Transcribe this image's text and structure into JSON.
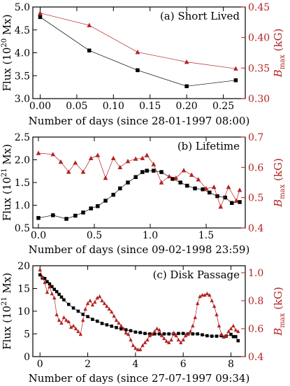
{
  "figure": {
    "colors": {
      "flux": "#000000",
      "bmax": "#b22222"
    }
  },
  "chart_data": [
    {
      "type": "line",
      "panel_label": "(a) Short Lived",
      "xlabel": "Number of days (since 28-01-1997 08:00)",
      "ylabel": "Flux (10",
      "ylabel_sup": "20",
      "ylabel_tail": " Mx)",
      "y2label": "B",
      "y2label_sub": "max",
      "y2label_tail": " (kG)",
      "xlim": [
        -0.01,
        0.28
      ],
      "ylim": [
        3.0,
        5.0
      ],
      "y2lim": [
        0.3,
        0.45
      ],
      "xticks": [
        0.0,
        0.05,
        0.1,
        0.15,
        0.2,
        0.25
      ],
      "xtick_labels": [
        "0.00",
        "0.05",
        "0.10",
        "0.15",
        "0.20",
        "0.25"
      ],
      "yticks": [
        3.0,
        3.5,
        4.0,
        4.5,
        5.0
      ],
      "ytick_labels": [
        "3.0",
        "3.5",
        "4.0",
        "4.5",
        "5.0"
      ],
      "y2ticks": [
        0.3,
        0.35,
        0.4,
        0.45
      ],
      "y2tick_labels": [
        "0.30",
        "0.35",
        "0.40",
        "0.45"
      ],
      "series": [
        {
          "axis": "left",
          "marker": "square",
          "x": [
            0.0,
            0.067,
            0.133,
            0.2,
            0.267
          ],
          "y": [
            4.78,
            4.05,
            3.62,
            3.27,
            3.4
          ]
        },
        {
          "axis": "right",
          "marker": "triangle",
          "x": [
            0.0,
            0.067,
            0.133,
            0.2,
            0.267
          ],
          "y": [
            0.44,
            0.42,
            0.376,
            0.36,
            0.349
          ]
        }
      ]
    },
    {
      "type": "line",
      "panel_label": "(b) Lifetime",
      "xlabel": "Number of days (since 09-02-1998 23:59)",
      "ylabel": "Flux (10",
      "ylabel_sup": "21",
      "ylabel_tail": " Mx)",
      "y2label": "B",
      "y2label_sub": "max",
      "y2label_tail": " (kG)",
      "xlim": [
        -0.05,
        1.85
      ],
      "ylim": [
        0.5,
        2.5
      ],
      "y2lim": [
        0.4,
        0.7
      ],
      "xticks": [
        0.0,
        0.5,
        1.0,
        1.5
      ],
      "xtick_labels": [
        "0.0",
        "0.5",
        "1.0",
        "1.5"
      ],
      "yticks": [
        0.5,
        1.0,
        1.5,
        2.0,
        2.5
      ],
      "ytick_labels": [
        "0.5",
        "1.0",
        "1.5",
        "2.0",
        "2.5"
      ],
      "y2ticks": [
        0.4,
        0.5,
        0.6,
        0.7
      ],
      "y2tick_labels": [
        "0.4",
        "0.5",
        "0.6",
        "0.7"
      ],
      "series": [
        {
          "axis": "left",
          "marker": "square",
          "x": [
            0.0,
            0.13,
            0.25,
            0.33,
            0.4,
            0.47,
            0.53,
            0.6,
            0.67,
            0.73,
            0.8,
            0.87,
            0.93,
            0.97,
            1.03,
            1.1,
            1.2,
            1.27,
            1.33,
            1.4,
            1.47,
            1.53,
            1.6,
            1.67,
            1.73,
            1.8
          ],
          "y": [
            0.72,
            0.78,
            0.7,
            0.77,
            0.84,
            0.93,
            0.98,
            1.1,
            1.23,
            1.37,
            1.5,
            1.62,
            1.73,
            1.76,
            1.76,
            1.73,
            1.58,
            1.5,
            1.43,
            1.37,
            1.35,
            1.28,
            1.2,
            1.17,
            1.05,
            1.07
          ]
        },
        {
          "axis": "right",
          "marker": "triangle",
          "x": [
            0.0,
            0.13,
            0.2,
            0.27,
            0.33,
            0.4,
            0.47,
            0.53,
            0.6,
            0.67,
            0.73,
            0.8,
            0.87,
            0.93,
            0.97,
            1.03,
            1.1,
            1.17,
            1.23,
            1.3,
            1.37,
            1.43,
            1.5,
            1.57,
            1.63,
            1.7,
            1.77,
            1.8
          ],
          "y": [
            0.647,
            0.643,
            0.618,
            0.585,
            0.615,
            0.585,
            0.63,
            0.64,
            0.565,
            0.63,
            0.6,
            0.62,
            0.628,
            0.63,
            0.64,
            0.61,
            0.55,
            0.57,
            0.565,
            0.59,
            0.575,
            0.56,
            0.53,
            0.535,
            0.47,
            0.535,
            0.49,
            0.525
          ]
        }
      ]
    },
    {
      "type": "line",
      "panel_label": "(c) Disk Passage",
      "xlabel": "Number of days (since 27-07-1997 09:34)",
      "ylabel": "Flux (10",
      "ylabel_sup": "21",
      "ylabel_tail": " Mx)",
      "y2label": "B",
      "y2label_sub": "max",
      "y2label_tail": " (kG)",
      "xlim": [
        -0.3,
        8.6
      ],
      "ylim": [
        0,
        20
      ],
      "y2lim": [
        0.4,
        1.05
      ],
      "xticks": [
        0,
        2,
        4,
        6,
        8
      ],
      "xtick_labels": [
        "0",
        "2",
        "4",
        "6",
        "8"
      ],
      "yticks": [
        0,
        5,
        10,
        15,
        20
      ],
      "ytick_labels": [
        "0",
        "5",
        "10",
        "15",
        "20"
      ],
      "y2ticks": [
        0.4,
        0.6,
        0.8,
        1.0
      ],
      "y2tick_labels": [
        "0.4",
        "0.6",
        "0.8",
        "1.0"
      ],
      "series": [
        {
          "axis": "left",
          "marker": "square",
          "x": [
            0.0,
            0.1,
            0.2,
            0.3,
            0.4,
            0.5,
            0.6,
            0.7,
            0.8,
            0.9,
            1.0,
            1.2,
            1.4,
            1.6,
            1.8,
            2.0,
            2.2,
            2.4,
            2.6,
            2.8,
            3.0,
            3.2,
            3.4,
            3.6,
            3.8,
            4.0,
            4.2,
            4.4,
            4.6,
            4.8,
            5.0,
            5.2,
            5.4,
            5.6,
            5.8,
            6.0,
            6.2,
            6.4,
            6.6,
            6.8,
            7.0,
            7.2,
            7.4,
            7.6,
            7.8,
            8.0,
            8.1,
            8.2,
            8.3
          ],
          "y": [
            18.0,
            17.3,
            17.2,
            16.5,
            16.0,
            15.4,
            14.8,
            14.3,
            13.7,
            13.1,
            12.5,
            11.5,
            10.7,
            10.0,
            9.3,
            8.8,
            8.2,
            7.8,
            7.3,
            7.0,
            6.7,
            6.4,
            6.1,
            5.9,
            5.7,
            5.4,
            5.3,
            5.1,
            5.0,
            5.0,
            5.0,
            5.0,
            5.0,
            5.0,
            5.1,
            5.1,
            5.0,
            5.0,
            5.0,
            4.8,
            4.6,
            4.5,
            4.5,
            4.6,
            4.5,
            4.9,
            4.4,
            4.4,
            3.5
          ]
        },
        {
          "axis": "right",
          "marker": "triangle",
          "x": [
            0.0,
            0.1,
            0.2,
            0.3,
            0.4,
            0.5,
            0.6,
            0.7,
            0.8,
            0.9,
            1.0,
            1.1,
            1.2,
            1.3,
            1.4,
            1.5,
            1.6,
            1.7,
            1.8,
            1.9,
            2.0,
            2.1,
            2.2,
            2.3,
            2.4,
            2.5,
            2.6,
            2.7,
            2.8,
            2.9,
            3.0,
            3.1,
            3.2,
            3.3,
            3.4,
            3.5,
            3.6,
            3.7,
            3.8,
            3.9,
            4.0,
            4.1,
            4.2,
            4.3,
            4.4,
            4.5,
            4.6,
            4.7,
            4.8,
            4.9,
            5.0,
            5.1,
            5.2,
            5.3,
            5.4,
            5.5,
            5.6,
            5.7,
            5.8,
            5.9,
            6.0,
            6.1,
            6.2,
            6.3,
            6.4,
            6.5,
            6.6,
            6.7,
            6.8,
            6.9,
            7.0,
            7.1,
            7.2,
            7.3,
            7.4,
            7.5,
            7.6,
            7.7,
            7.8,
            7.9,
            8.0,
            8.1,
            8.2,
            8.3
          ],
          "y": [
            1.02,
            0.97,
            0.93,
            0.86,
            0.9,
            0.85,
            0.82,
            0.7,
            0.66,
            0.64,
            0.68,
            0.66,
            0.65,
            0.61,
            0.62,
            0.6,
            0.58,
            0.56,
            0.66,
            0.74,
            0.78,
            0.8,
            0.77,
            0.79,
            0.82,
            0.83,
            0.8,
            0.78,
            0.76,
            0.74,
            0.72,
            0.69,
            0.66,
            0.64,
            0.62,
            0.6,
            0.57,
            0.56,
            0.52,
            0.48,
            0.46,
            0.45,
            0.45,
            0.48,
            0.5,
            0.52,
            0.55,
            0.56,
            0.58,
            0.6,
            0.59,
            0.55,
            0.53,
            0.51,
            0.5,
            0.52,
            0.57,
            0.55,
            0.52,
            0.5,
            0.52,
            0.55,
            0.56,
            0.58,
            0.62,
            0.68,
            0.78,
            0.83,
            0.84,
            0.84,
            0.85,
            0.84,
            0.8,
            0.76,
            0.7,
            0.62,
            0.56,
            0.54,
            0.55,
            0.58,
            0.6,
            0.62,
            0.59,
            0.58
          ]
        }
      ]
    }
  ]
}
